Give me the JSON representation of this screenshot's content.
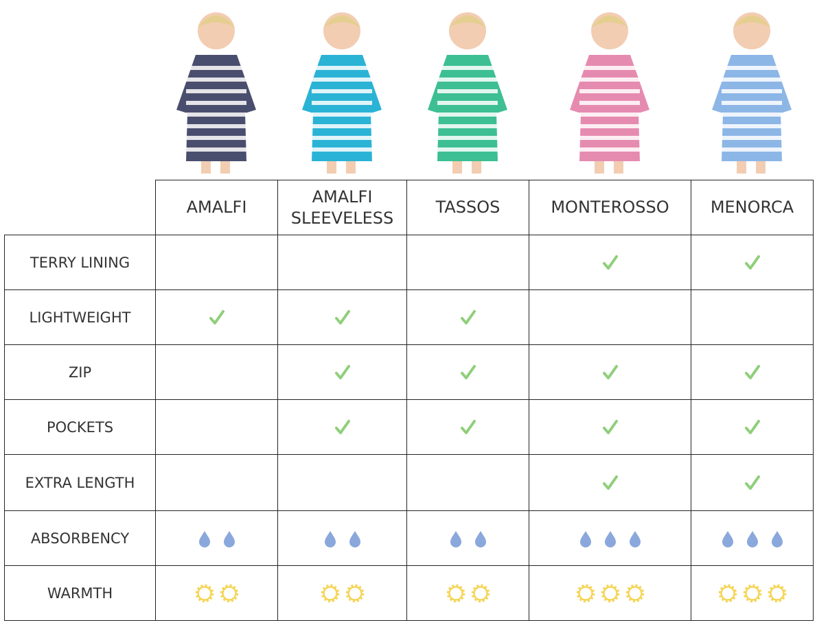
{
  "table": {
    "columns": [
      "AMALFI",
      "AMALFI SLEEVELESS",
      "TASSOS",
      "MONTEROSSO",
      "MENORCA"
    ],
    "rows": [
      {
        "label": "TERRY LINING",
        "checks": [
          false,
          false,
          false,
          true,
          true
        ]
      },
      {
        "label": "LIGHTWEIGHT",
        "checks": [
          true,
          true,
          true,
          false,
          false
        ]
      },
      {
        "label": "ZIP",
        "checks": [
          false,
          true,
          true,
          true,
          true
        ]
      },
      {
        "label": "POCKETS",
        "checks": [
          false,
          true,
          true,
          true,
          true
        ]
      },
      {
        "label": "EXTRA LENGTH",
        "checks": [
          false,
          false,
          false,
          true,
          true
        ]
      },
      {
        "label": "ABSORBENCY",
        "icon": "drop",
        "counts": [
          2,
          2,
          2,
          3,
          3
        ]
      },
      {
        "label": "WARMTH",
        "icon": "sun",
        "counts": [
          2,
          2,
          2,
          3,
          3
        ]
      }
    ]
  }
}
